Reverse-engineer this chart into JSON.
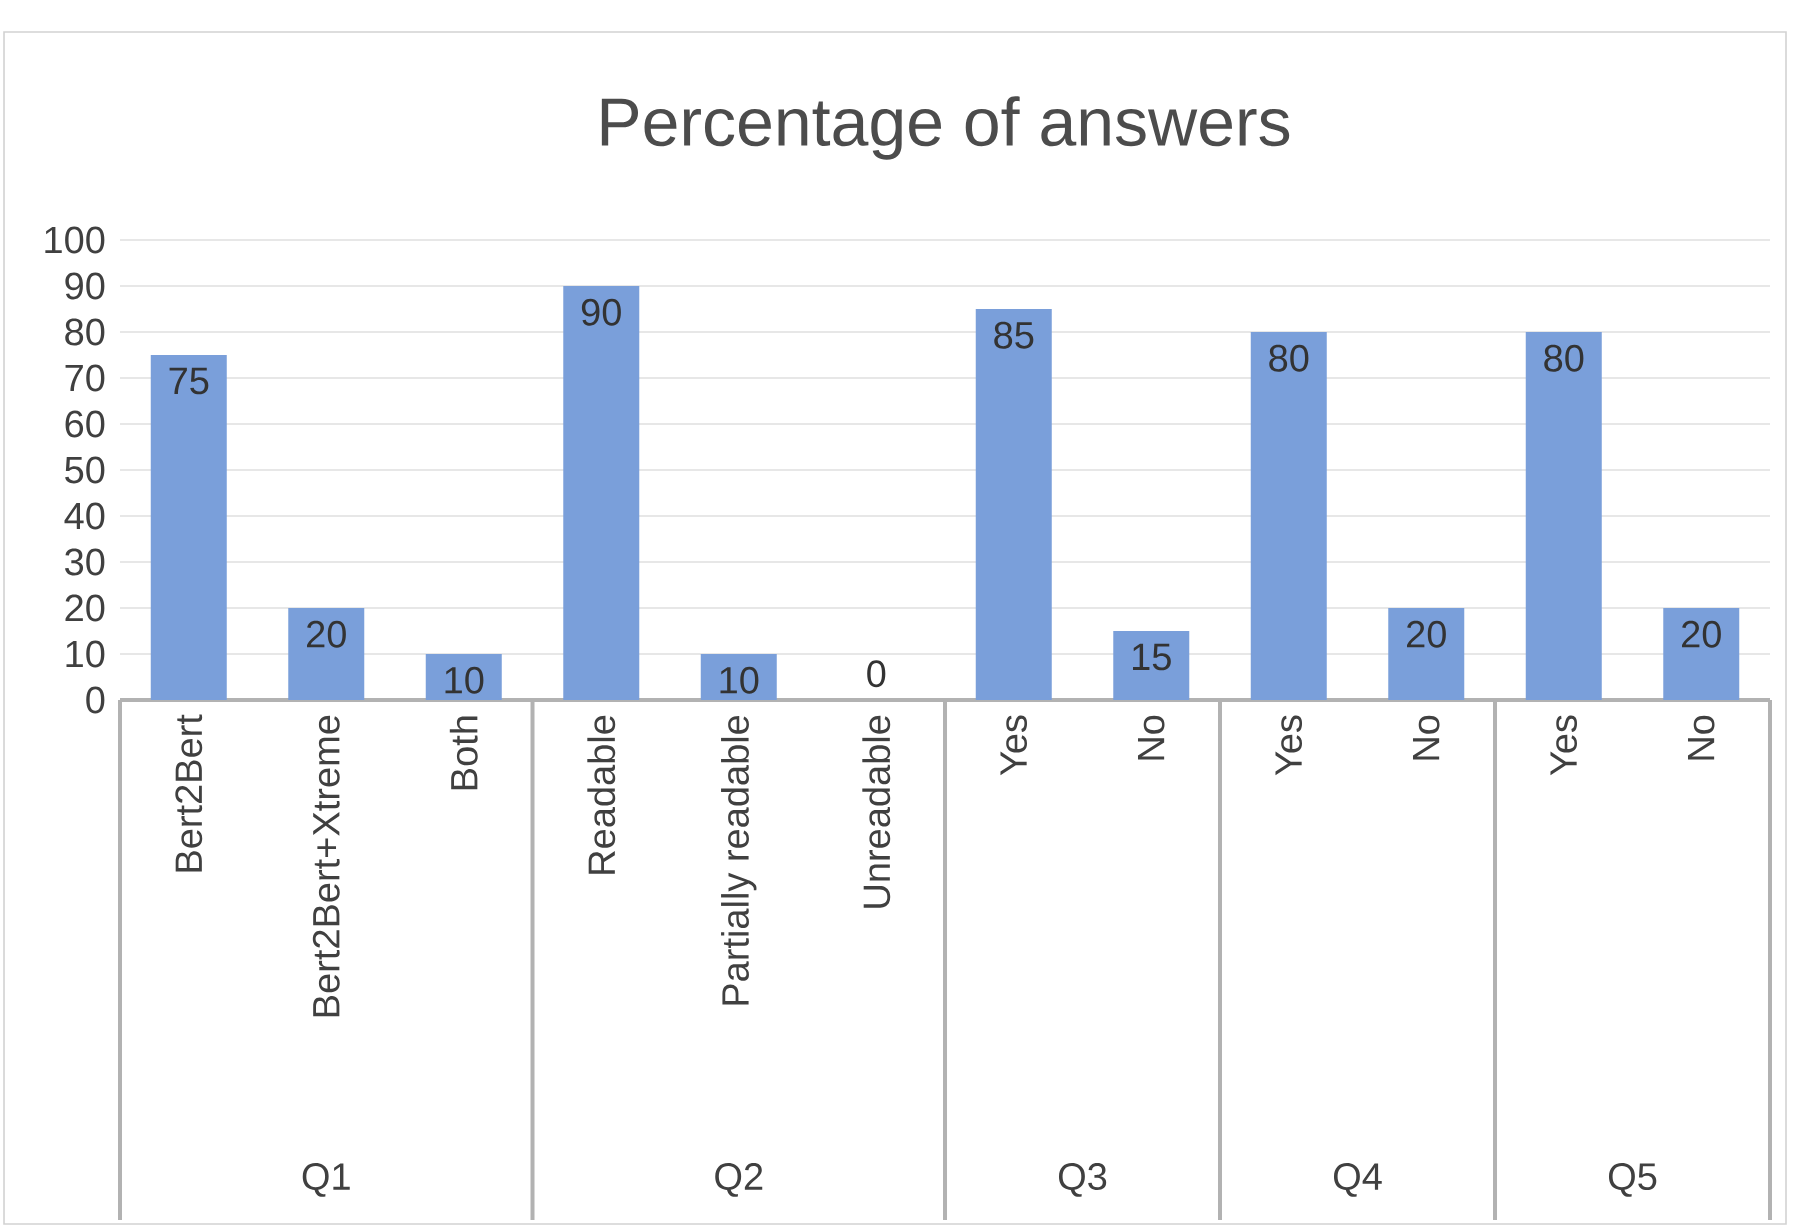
{
  "chart_data": {
    "type": "bar",
    "title": "Percentage of answers",
    "categories": [
      "Bert2Bert",
      "Bert2Bert+Xtreme",
      "Both",
      "Readable",
      "Partially readable",
      "Unreadable",
      "Yes",
      "No",
      "Yes",
      "No",
      "Yes",
      "No"
    ],
    "values": [
      75,
      20,
      10,
      90,
      10,
      0,
      85,
      15,
      80,
      20,
      80,
      20
    ],
    "color": "#7a9fda",
    "ylim": [
      0,
      100
    ],
    "yticks": [
      0,
      10,
      20,
      30,
      40,
      50,
      60,
      70,
      80,
      90,
      100
    ],
    "grid": "y",
    "data_labels": true,
    "annotations": [
      "Q1",
      "Q2",
      "Q3",
      "Q4",
      "Q5"
    ]
  }
}
